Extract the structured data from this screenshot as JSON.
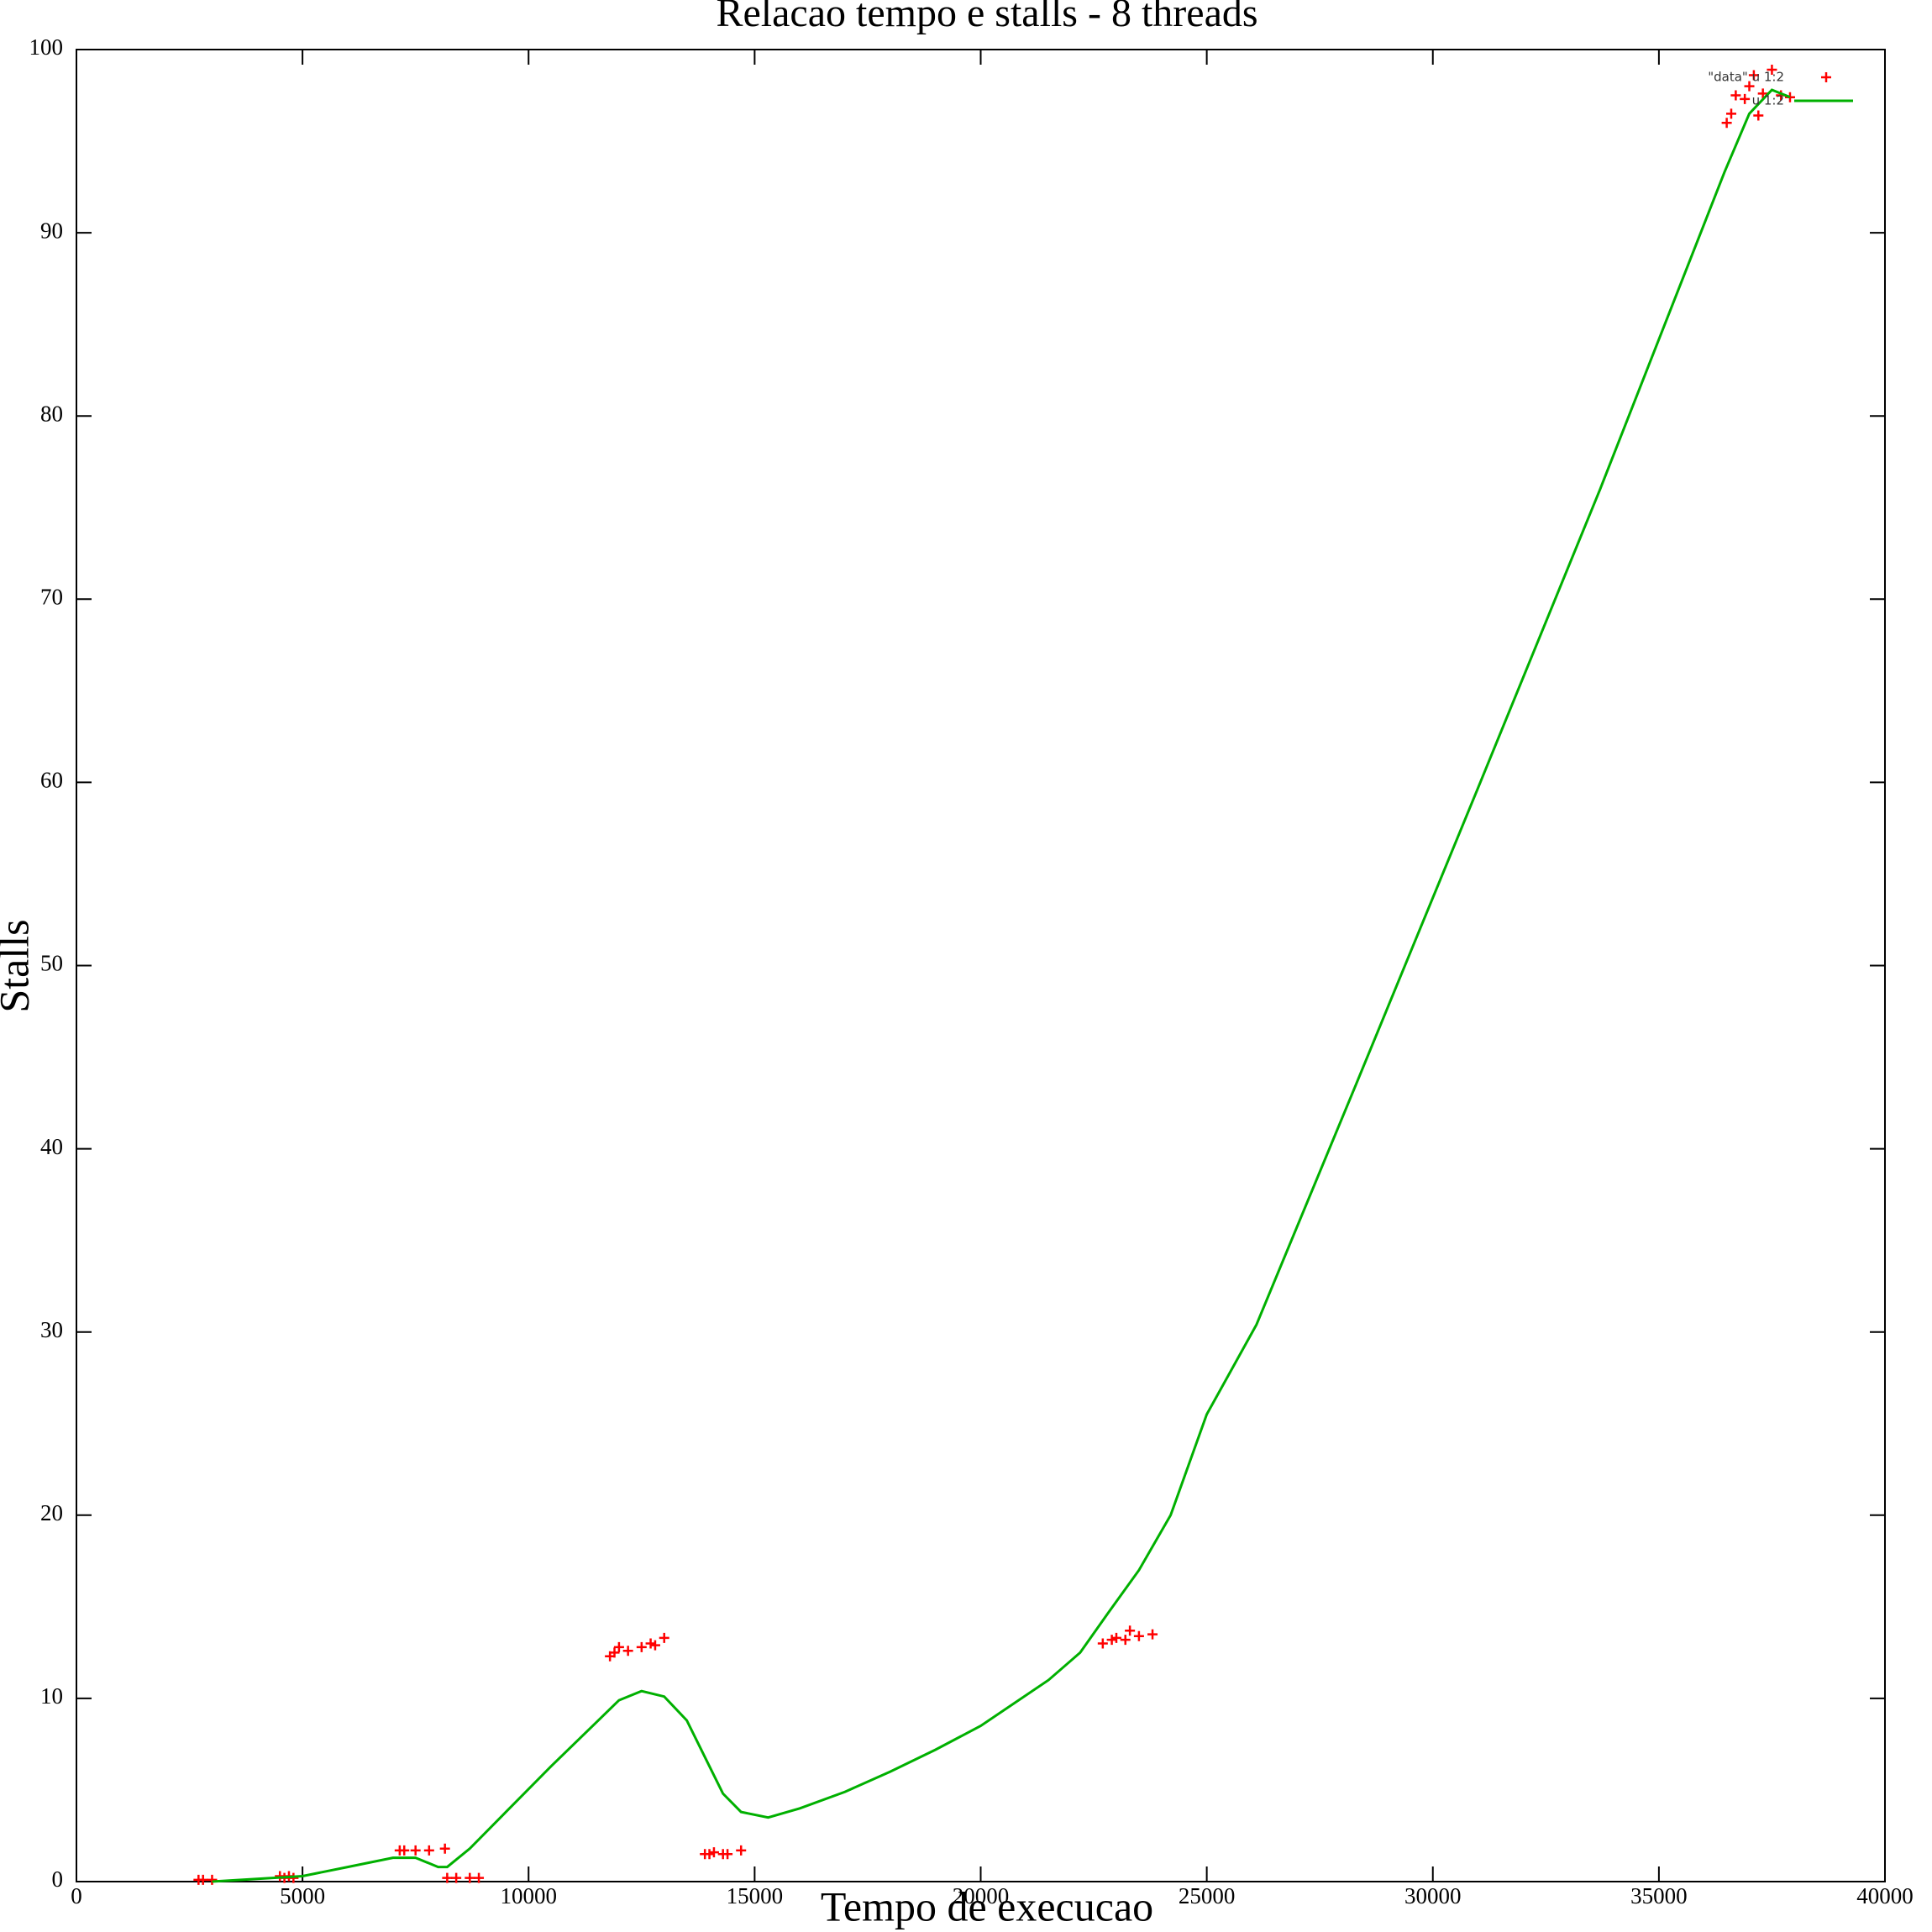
{
  "chart_data": {
    "type": "scatter",
    "title": "Relacao tempo e stalls - 8 threads",
    "x_label": "Tempo de execucao",
    "y_label": "Stalls",
    "xlim": [
      0,
      40000
    ],
    "xticks": [
      0,
      5000,
      10000,
      15000,
      20000,
      25000,
      30000,
      35000,
      40000
    ],
    "ylim": [
      0,
      100
    ],
    "yticks": [
      0,
      10,
      20,
      30,
      40,
      50,
      60,
      70,
      80,
      90,
      100
    ],
    "legend": "top-right",
    "series": [
      {
        "name": "\"data\" u 1:2",
        "type": "points",
        "color": "#ff0000",
        "x": [
          2700,
          2800,
          3000,
          4500,
          4600,
          4700,
          4800,
          7150,
          7250,
          7500,
          7800,
          8150,
          8200,
          8400,
          8700,
          8900,
          11800,
          11900,
          12000,
          12200,
          12500,
          12700,
          12800,
          13000,
          13900,
          14000,
          14100,
          14300,
          14400,
          14700,
          22700,
          22900,
          23000,
          23200,
          23300,
          23500,
          23800,
          36500,
          36600,
          36700,
          36900,
          37000,
          37100,
          37200,
          37300,
          37500,
          37700,
          37900
        ],
        "values": [
          0.1,
          0.1,
          0.1,
          0.3,
          0.2,
          0.3,
          0.2,
          1.7,
          1.7,
          1.7,
          1.7,
          1.8,
          0.2,
          0.2,
          0.2,
          0.2,
          12.3,
          12.5,
          12.8,
          12.6,
          12.8,
          13.0,
          12.9,
          13.3,
          1.5,
          1.5,
          1.6,
          1.5,
          1.5,
          1.7,
          13.0,
          13.2,
          13.3,
          13.2,
          13.7,
          13.4,
          13.5,
          96.0,
          96.5,
          97.5,
          97.3,
          98.0,
          98.6,
          96.4,
          97.6,
          98.9,
          97.5,
          97.4
        ]
      },
      {
        "name": "u 1:2",
        "type": "line",
        "color": "#00b000",
        "x": [
          3000,
          5000,
          6000,
          7000,
          7500,
          8000,
          8200,
          8700,
          9500,
          10500,
          11500,
          12000,
          12500,
          13000,
          13500,
          14000,
          14300,
          14700,
          15300,
          16000,
          17000,
          18000,
          19000,
          20000,
          21500,
          22200,
          22800,
          23500,
          24200,
          25000,
          26100,
          28300,
          31000,
          33700,
          36450,
          37000,
          37500,
          37900
        ],
        "values": [
          0.0,
          0.3,
          0.8,
          1.3,
          1.3,
          0.8,
          0.8,
          1.8,
          3.8,
          6.3,
          8.7,
          9.9,
          10.4,
          10.1,
          8.8,
          6.3,
          4.8,
          3.8,
          3.5,
          4.0,
          4.9,
          6.0,
          7.2,
          8.5,
          11.0,
          12.5,
          14.6,
          17.0,
          20.0,
          25.5,
          30.4,
          43.5,
          59.7,
          76.0,
          93.3,
          96.5,
          97.8,
          97.4
        ]
      }
    ]
  }
}
